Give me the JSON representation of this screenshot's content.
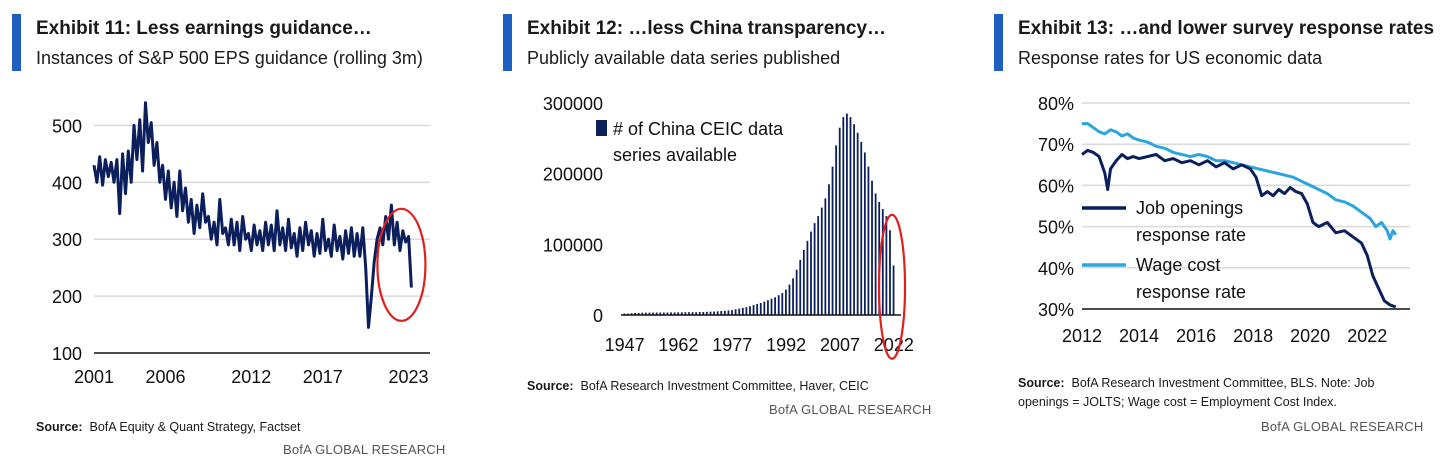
{
  "colors": {
    "accent": "#1f5fbf",
    "navy": "#0b1f5c",
    "light_blue": "#2aa6dd",
    "highlight": "#e0201c",
    "grid": "#d9d9d9"
  },
  "source_label": "Source:",
  "brand": "BofA GLOBAL RESEARCH",
  "panels": [
    {
      "title": "Exhibit 11: Less earnings guidance…",
      "subtitle": "Instances of S&P 500 EPS guidance (rolling 3m)",
      "source_text": "BofA Equity & Quant Strategy, Factset",
      "chart_data": {
        "type": "line",
        "title": "Instances of S&P 500 EPS guidance (rolling 3m)",
        "xlabel": "",
        "ylabel": "",
        "xlim": [
          2001,
          2024.5
        ],
        "ylim": [
          100,
          550
        ],
        "x_ticks": [
          "2001",
          "2006",
          "2012",
          "2017",
          "2023"
        ],
        "x_tick_values": [
          2001,
          2006,
          2012,
          2017,
          2023
        ],
        "y_ticks": [
          "100",
          "200",
          "300",
          "400",
          "500"
        ],
        "y_tick_values": [
          100,
          200,
          300,
          400,
          500
        ],
        "grid": true,
        "annotation": "red ellipse highlighting 2022-2023",
        "series": [
          {
            "name": "Instances of S&P 500 EPS guidance",
            "x": [
              2001,
              2001.2,
              2001.4,
              2001.6,
              2001.8,
              2002,
              2002.2,
              2002.4,
              2002.6,
              2002.8,
              2003,
              2003.2,
              2003.4,
              2003.6,
              2003.8,
              2004,
              2004.2,
              2004.4,
              2004.6,
              2004.8,
              2005,
              2005.2,
              2005.4,
              2005.6,
              2005.8,
              2006,
              2006.2,
              2006.4,
              2006.6,
              2006.8,
              2007,
              2007.2,
              2007.4,
              2007.6,
              2007.8,
              2008,
              2008.2,
              2008.4,
              2008.6,
              2008.8,
              2009,
              2009.2,
              2009.4,
              2009.6,
              2009.8,
              2010,
              2010.2,
              2010.4,
              2010.6,
              2010.8,
              2011,
              2011.2,
              2011.4,
              2011.6,
              2011.8,
              2012,
              2012.2,
              2012.4,
              2012.6,
              2012.8,
              2013,
              2013.2,
              2013.4,
              2013.6,
              2013.8,
              2014,
              2014.2,
              2014.4,
              2014.6,
              2014.8,
              2015,
              2015.2,
              2015.4,
              2015.6,
              2015.8,
              2016,
              2016.2,
              2016.4,
              2016.6,
              2016.8,
              2017,
              2017.2,
              2017.4,
              2017.6,
              2017.8,
              2018,
              2018.2,
              2018.4,
              2018.6,
              2018.8,
              2019,
              2019.2,
              2019.4,
              2019.6,
              2019.8,
              2020,
              2020.2,
              2020.4,
              2020.6,
              2020.8,
              2021,
              2021.2,
              2021.4,
              2021.6,
              2021.8,
              2022,
              2022.2,
              2022.4,
              2022.6,
              2022.8,
              2023,
              2023.2
            ],
            "y": [
              430,
              400,
              445,
              395,
              440,
              410,
              435,
              400,
              440,
              345,
              450,
              380,
              455,
              400,
              500,
              440,
              510,
              420,
              540,
              470,
              505,
              430,
              470,
              400,
              430,
              370,
              420,
              355,
              400,
              340,
              420,
              350,
              390,
              330,
              370,
              310,
              360,
              320,
              380,
              330,
              340,
              300,
              330,
              290,
              370,
              310,
              320,
              290,
              335,
              290,
              330,
              280,
              340,
              300,
              310,
              280,
              325,
              290,
              315,
              280,
              330,
              290,
              325,
              280,
              350,
              290,
              320,
              280,
              335,
              285,
              310,
              270,
              320,
              280,
              330,
              290,
              315,
              270,
              310,
              275,
              335,
              280,
              300,
              270,
              325,
              280,
              305,
              265,
              315,
              275,
              320,
              270,
              310,
              270,
              320,
              250,
              145,
              200,
              260,
              300,
              320,
              290,
              340,
              300,
              360,
              290,
              330,
              280,
              315,
              295,
              305,
              215
            ]
          }
        ]
      }
    },
    {
      "title": "Exhibit 12: …less China transparency…",
      "subtitle": "Publicly available data series published",
      "source_text": "BofA Research Investment Committee, Haver, CEIC",
      "chart_data": {
        "type": "bar",
        "title": "Publicly available data series published",
        "xlabel": "",
        "ylabel": "",
        "xlim": [
          1946,
          2024
        ],
        "ylim": [
          0,
          300000
        ],
        "x_ticks": [
          "1947",
          "1962",
          "1977",
          "1992",
          "2007",
          "2022"
        ],
        "x_tick_values": [
          1947,
          1962,
          1977,
          1992,
          2007,
          2022
        ],
        "y_ticks": [
          "0",
          "100000",
          "200000",
          "300000"
        ],
        "y_tick_values": [
          0,
          100000,
          200000,
          300000
        ],
        "legend": [
          "# of China CEIC data",
          "series available"
        ],
        "annotation": "red ellipse highlighting 2021-2022",
        "categories": [
          1947,
          1948,
          1949,
          1950,
          1951,
          1952,
          1953,
          1954,
          1955,
          1956,
          1957,
          1958,
          1959,
          1960,
          1961,
          1962,
          1963,
          1964,
          1965,
          1966,
          1967,
          1968,
          1969,
          1970,
          1971,
          1972,
          1973,
          1974,
          1975,
          1976,
          1977,
          1978,
          1979,
          1980,
          1981,
          1982,
          1983,
          1984,
          1985,
          1986,
          1987,
          1988,
          1989,
          1990,
          1991,
          1992,
          1993,
          1994,
          1995,
          1996,
          1997,
          1998,
          1999,
          2000,
          2001,
          2002,
          2003,
          2004,
          2005,
          2006,
          2007,
          2008,
          2009,
          2010,
          2011,
          2012,
          2013,
          2014,
          2015,
          2016,
          2017,
          2018,
          2019,
          2020,
          2021,
          2022
        ],
        "values": [
          2000,
          2000,
          2500,
          3000,
          3000,
          3200,
          3300,
          3400,
          3400,
          3500,
          3500,
          3600,
          3600,
          3700,
          3700,
          3800,
          3800,
          3900,
          4000,
          4000,
          4000,
          4200,
          4300,
          4500,
          4700,
          5000,
          5300,
          5600,
          6000,
          6500,
          7000,
          8000,
          9000,
          10000,
          11000,
          12500,
          14000,
          15500,
          17000,
          19000,
          21000,
          23000,
          25000,
          28000,
          31000,
          36000,
          43000,
          52000,
          64000,
          78000,
          92000,
          105000,
          118000,
          130000,
          140000,
          152000,
          165000,
          185000,
          210000,
          240000,
          265000,
          280000,
          285000,
          280000,
          270000,
          258000,
          245000,
          230000,
          210000,
          190000,
          172000,
          160000,
          150000,
          140000,
          120000,
          70000
        ]
      }
    },
    {
      "title": "Exhibit 13: …and lower survey response rates",
      "subtitle": "Response rates for US economic data",
      "source_text": "BofA Research Investment Committee, BLS. Note: Job",
      "source_text_2": "openings  = JOLTS; Wage cost = Employment Cost Index.",
      "chart_data": {
        "type": "line",
        "title": "Response rates for US economic data",
        "xlabel": "",
        "ylabel": "",
        "xlim": [
          2012,
          2023.5
        ],
        "ylim": [
          30,
          80
        ],
        "x_ticks": [
          "2012",
          "2014",
          "2016",
          "2018",
          "2020",
          "2022"
        ],
        "x_tick_values": [
          2012,
          2014,
          2016,
          2018,
          2020,
          2022
        ],
        "y_ticks": [
          "30%",
          "40%",
          "50%",
          "60%",
          "70%",
          "80%"
        ],
        "y_tick_values": [
          30,
          40,
          50,
          60,
          70,
          80
        ],
        "grid": true,
        "legend": [
          {
            "line1": "Job openings",
            "line2": "response rate"
          },
          {
            "line1": "Wage cost",
            "line2": "response rate"
          }
        ],
        "series": [
          {
            "name": "Job openings response rate",
            "x": [
              2012,
              2012.2,
              2012.4,
              2012.6,
              2012.8,
              2012.9,
              2013,
              2013.2,
              2013.4,
              2013.6,
              2013.8,
              2014,
              2014.3,
              2014.6,
              2014.9,
              2015.2,
              2015.5,
              2015.8,
              2016.1,
              2016.4,
              2016.7,
              2017,
              2017.3,
              2017.6,
              2017.9,
              2018.1,
              2018.3,
              2018.5,
              2018.7,
              2018.9,
              2019.1,
              2019.3,
              2019.5,
              2019.7,
              2019.9,
              2020.1,
              2020.3,
              2020.6,
              2020.9,
              2021.2,
              2021.5,
              2021.8,
              2022,
              2022.2,
              2022.4,
              2022.6,
              2022.8,
              2023
            ],
            "y": [
              67.5,
              68.5,
              68,
              67,
              63,
              59,
              64,
              66,
              67.5,
              66.5,
              67,
              66.5,
              67,
              67.5,
              66,
              66.5,
              65.5,
              66,
              65,
              66,
              64.5,
              65.5,
              64,
              65,
              64,
              62,
              57.5,
              58.5,
              57.5,
              59,
              58,
              59.5,
              58.5,
              58,
              55.5,
              51,
              50,
              51,
              48.5,
              49,
              47.5,
              46,
              43,
              38,
              35,
              32,
              31,
              30.5
            ]
          },
          {
            "name": "Wage cost response rate",
            "x": [
              2012,
              2012.2,
              2012.4,
              2012.6,
              2012.8,
              2013,
              2013.2,
              2013.4,
              2013.6,
              2013.8,
              2014,
              2014.3,
              2014.6,
              2014.9,
              2015.2,
              2015.5,
              2015.8,
              2016.1,
              2016.4,
              2016.7,
              2017,
              2017.3,
              2017.6,
              2017.9,
              2018.2,
              2018.5,
              2018.8,
              2019.1,
              2019.4,
              2019.7,
              2020,
              2020.3,
              2020.6,
              2020.9,
              2021.2,
              2021.5,
              2021.8,
              2022.1,
              2022.3,
              2022.5,
              2022.7,
              2022.8,
              2022.9,
              2023
            ],
            "y": [
              75,
              75,
              74,
              73,
              72.5,
              73.5,
              73,
              72,
              72.5,
              71.5,
              71,
              70.5,
              69.5,
              69,
              68,
              67.5,
              67,
              67.5,
              67,
              66,
              66,
              65.5,
              65,
              64.5,
              64,
              63.5,
              63,
              62.5,
              62,
              61,
              60,
              59,
              58,
              56.5,
              56,
              55,
              53.5,
              52,
              50,
              51,
              49,
              47,
              49,
              48
            ]
          }
        ]
      }
    }
  ]
}
